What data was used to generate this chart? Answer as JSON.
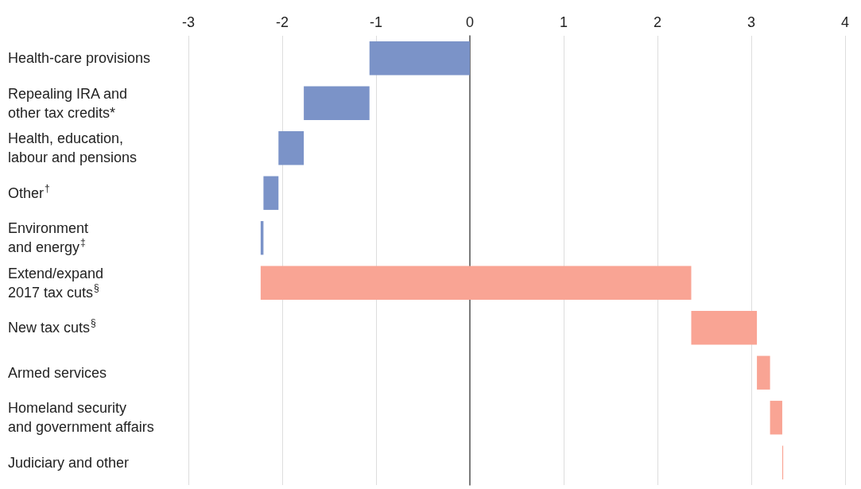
{
  "chart_data": {
    "type": "bar",
    "orientation": "horizontal",
    "categories": [
      "Health-care provisions",
      "Repealing IRA and\nother tax credits*",
      "Health, education,\nlabour and pensions",
      "Other$^{†}$",
      "Environment\nand energy$^{‡}$",
      "Extend/expand\n2017 tax cuts$^{§}$",
      "New tax cuts$^{§}$",
      "Armed services",
      "Homeland security\nand government affairs",
      "Judiciary and other"
    ],
    "base": [
      0,
      -1.07,
      -1.77,
      -2.04,
      -2.2,
      -2.23,
      2.36,
      3.06,
      3.2,
      3.33
    ],
    "values": [
      -1.07,
      -0.7,
      -0.27,
      -0.16,
      -0.03,
      4.59,
      0.7,
      0.14,
      0.13,
      0.01
    ],
    "colors": [
      "#7b93c8",
      "#7b93c8",
      "#7b93c8",
      "#7b93c8",
      "#7b93c8",
      "#f9a494",
      "#f9a494",
      "#f9a494",
      "#f9a494",
      "#f9a494"
    ],
    "xlim": [
      -3,
      4
    ],
    "xticks": [
      -3,
      -2,
      -1,
      0,
      1,
      2,
      3,
      4
    ],
    "grid": "x"
  }
}
